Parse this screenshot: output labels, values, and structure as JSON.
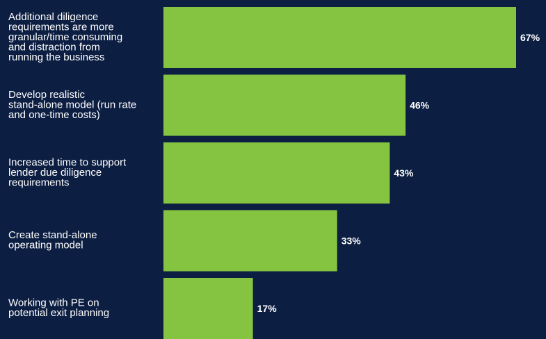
{
  "colors": {
    "background": "#0c1e42",
    "bar": "#84c441",
    "text": "#ffffff"
  },
  "chart_data": {
    "type": "bar",
    "orientation": "horizontal",
    "categories": [
      "Additional diligence requirements are more granular/time consuming and distraction from running the business",
      "Develop realistic stand-alone model (run rate and one-time costs)",
      "Increased time to support lender due diligence requirements",
      "Create stand-alone operating model",
      "Working with PE on potential exit planning"
    ],
    "category_lines": [
      [
        "Additional diligence",
        "requirements are more",
        "granular/time consuming",
        "and distraction from",
        "running the business"
      ],
      [
        "Develop realistic",
        "stand-alone model (run rate",
        "and one-time costs)"
      ],
      [
        "Increased time to support",
        "lender due diligence",
        "requirements"
      ],
      [
        "Create stand-alone",
        "operating model"
      ],
      [
        "Working with PE on",
        "potential exit planning"
      ]
    ],
    "values": [
      67,
      46,
      43,
      33,
      17
    ],
    "value_labels": [
      "67%",
      "46%",
      "43%",
      "33%",
      "17%"
    ],
    "unit": "%",
    "xlim": [
      0,
      67
    ],
    "grid": false,
    "legend": "none"
  }
}
